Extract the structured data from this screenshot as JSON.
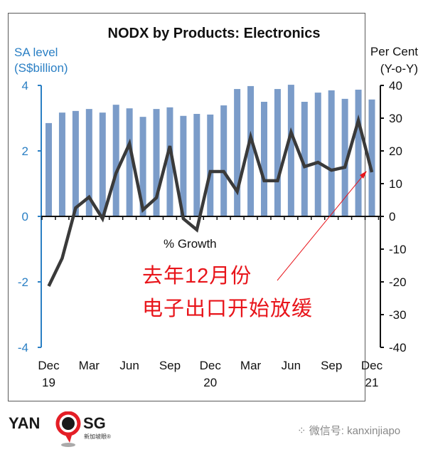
{
  "chart_data": {
    "type": "bar+line",
    "title": "NODX by Products: Electronics",
    "left_axis": {
      "label_line1": "SA level",
      "label_line2": "(S$billion)",
      "range": [
        -4,
        4
      ],
      "ticks": [
        4,
        2,
        0,
        -2,
        -4
      ],
      "color": "#2a7fc4"
    },
    "right_axis": {
      "label_line1": "Per Cent",
      "label_line2": "(Y-o-Y)",
      "range": [
        -40,
        40
      ],
      "ticks": [
        40,
        30,
        20,
        10,
        0,
        -10,
        -20,
        -30,
        -40
      ]
    },
    "categories": [
      "Dec 19",
      "Jan 20",
      "Feb 20",
      "Mar 20",
      "Apr 20",
      "May 20",
      "Jun 20",
      "Jul 20",
      "Aug 20",
      "Sep 20",
      "Oct 20",
      "Nov 20",
      "Dec 20",
      "Jan 21",
      "Feb 21",
      "Mar 21",
      "Apr 21",
      "May 21",
      "Jun 21",
      "Jul 21",
      "Aug 21",
      "Sep 21",
      "Oct 21",
      "Nov 21",
      "Dec 21"
    ],
    "x_tick_labels": [
      {
        "month": "Dec",
        "year": "19"
      },
      {
        "month": "Mar",
        "year": ""
      },
      {
        "month": "Jun",
        "year": ""
      },
      {
        "month": "Sep",
        "year": ""
      },
      {
        "month": "Dec",
        "year": "20"
      },
      {
        "month": "Mar",
        "year": ""
      },
      {
        "month": "Jun",
        "year": ""
      },
      {
        "month": "Sep",
        "year": ""
      },
      {
        "month": "Dec",
        "year": "21"
      }
    ],
    "series": [
      {
        "name": "SA level (S$billion)",
        "type": "bar",
        "axis": "left",
        "color": "#7b9cc9",
        "values": [
          2.85,
          3.17,
          3.22,
          3.28,
          3.17,
          3.41,
          3.3,
          3.04,
          3.28,
          3.33,
          3.07,
          3.13,
          3.11,
          3.39,
          3.89,
          3.98,
          3.5,
          3.89,
          4.02,
          3.5,
          3.78,
          3.85,
          3.59,
          3.87,
          3.57
        ]
      },
      {
        "name": "% Growth",
        "type": "line",
        "axis": "right",
        "color": "#3a3a3a",
        "values": [
          -21.3,
          -12.8,
          2.6,
          5.9,
          -0.7,
          13.2,
          22.2,
          2.0,
          5.7,
          21.5,
          -0.7,
          -4.1,
          13.7,
          13.7,
          7.6,
          24.3,
          10.9,
          10.9,
          25.7,
          15.2,
          16.5,
          14.1,
          15.0,
          29.3,
          13.5
        ]
      }
    ],
    "annotations": {
      "series_label": "% Growth",
      "callout_line1": "去年12月份",
      "callout_line2": "电子出口开始放缓",
      "callout_color": "#e8141a"
    }
  },
  "footer": {
    "logo_left": "YAN",
    "logo_right": "SG",
    "logo_sub": "新加坡眼®",
    "wechat_label": "微信号: kanxinjiapo"
  }
}
